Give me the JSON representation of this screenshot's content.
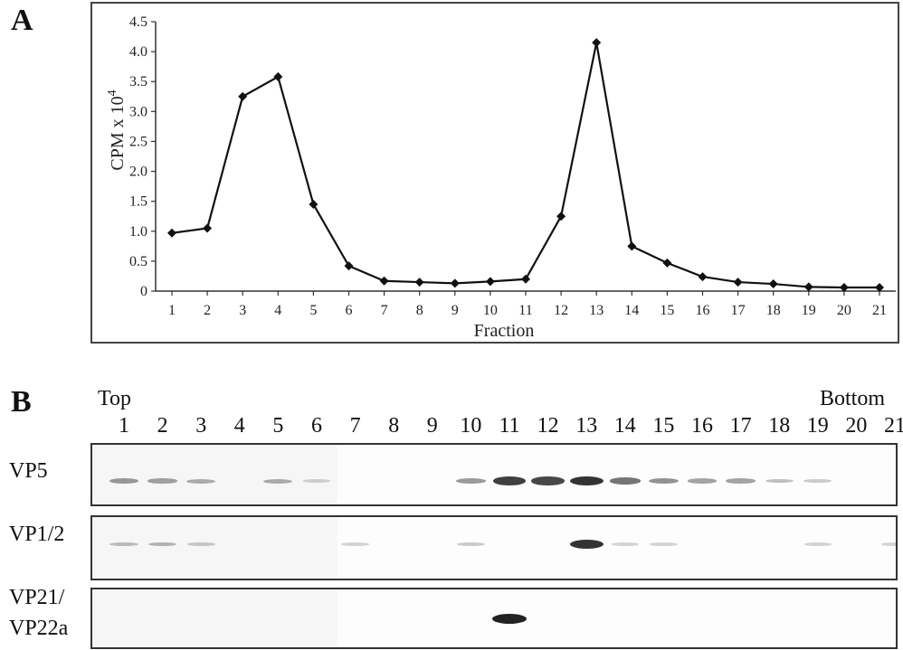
{
  "panels": {
    "a": "A",
    "b": "B"
  },
  "chart_data": {
    "type": "line",
    "xlabel": "Fraction",
    "ylabel": "CPM x 10",
    "ylabel_superscript": "4",
    "x": [
      1,
      2,
      3,
      4,
      5,
      6,
      7,
      8,
      9,
      10,
      11,
      12,
      13,
      14,
      15,
      16,
      17,
      18,
      19,
      20,
      21
    ],
    "values": [
      0.97,
      1.05,
      3.25,
      3.58,
      1.45,
      0.42,
      0.17,
      0.15,
      0.13,
      0.16,
      0.2,
      1.25,
      4.15,
      0.75,
      0.47,
      0.24,
      0.15,
      0.12,
      0.07,
      0.06,
      0.06
    ],
    "ylim": [
      0,
      4.5
    ],
    "yticks": [
      "0",
      "0.5",
      "1.0",
      "1.5",
      "2.0",
      "2.5",
      "3.0",
      "3.5",
      "4.0",
      "4.5"
    ],
    "xticks": [
      "1",
      "2",
      "3",
      "4",
      "5",
      "6",
      "7",
      "8",
      "9",
      "10",
      "11",
      "12",
      "13",
      "14",
      "15",
      "16",
      "17",
      "18",
      "19",
      "20",
      "21"
    ],
    "marker": "diamond",
    "grid": false
  },
  "blot": {
    "top_label": "Top",
    "bottom_label": "Bottom",
    "lanes": [
      "1",
      "2",
      "3",
      "4",
      "5",
      "6",
      "7",
      "8",
      "9",
      "10",
      "11",
      "12",
      "13",
      "14",
      "15",
      "16",
      "17",
      "18",
      "19",
      "20",
      "21"
    ],
    "rows": [
      {
        "label": "VP5",
        "intensity": [
          0.35,
          0.3,
          0.25,
          0,
          0.25,
          0.05,
          0,
          0,
          0,
          0.35,
          0.85,
          0.8,
          0.9,
          0.55,
          0.4,
          0.3,
          0.3,
          0.15,
          0.1,
          0,
          0
        ]
      },
      {
        "label": "VP1/2",
        "intensity": [
          0.15,
          0.2,
          0.1,
          0,
          0,
          0,
          0.05,
          0,
          0,
          0.1,
          0,
          0,
          0.9,
          0.05,
          0.05,
          0,
          0,
          0,
          0.05,
          0,
          0.05
        ]
      },
      {
        "label_line1": "VP21/",
        "label_line2": "VP22a",
        "intensity": [
          0,
          0,
          0,
          0,
          0,
          0,
          0,
          0,
          0,
          0,
          1.0,
          0,
          0,
          0,
          0,
          0,
          0,
          0,
          0,
          0,
          0
        ]
      }
    ]
  }
}
